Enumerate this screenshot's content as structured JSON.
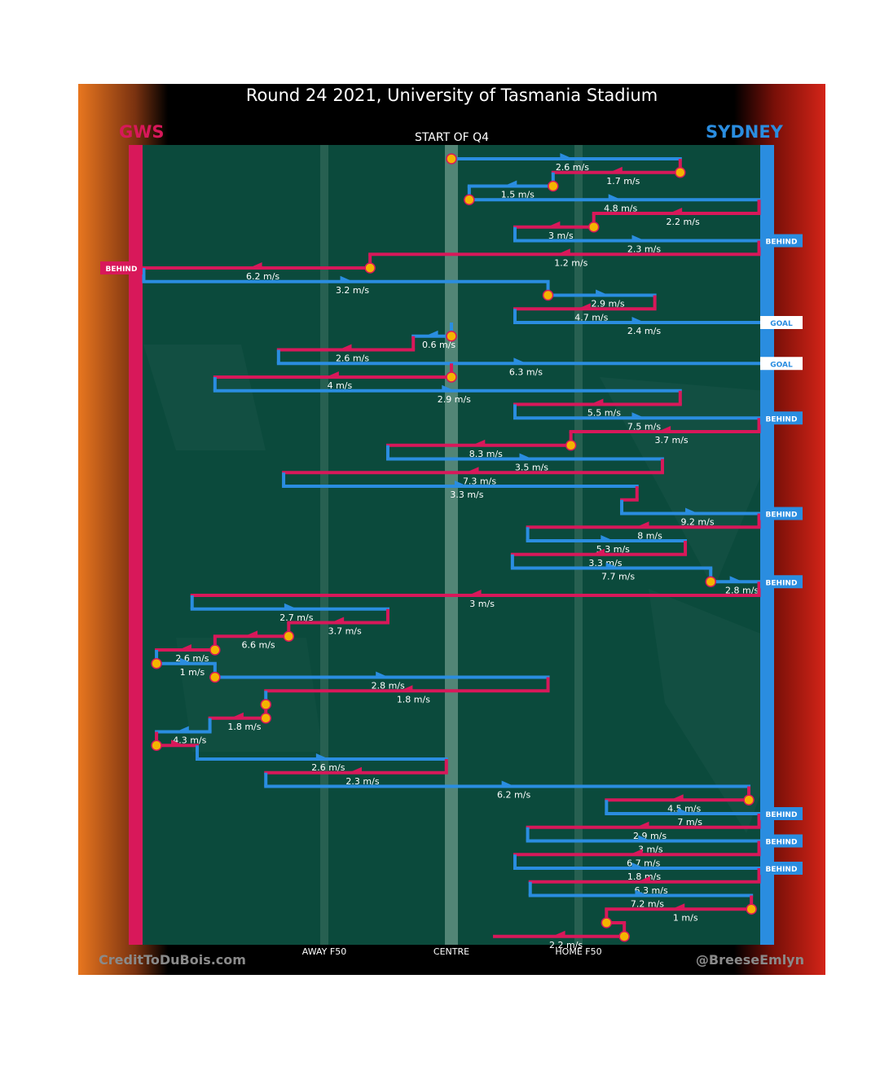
{
  "header": {
    "title": "Round 24 2021, University of Tasmania Stadium",
    "subtitle": "START OF Q4",
    "left_team": "GWS",
    "right_team": "SYDNEY"
  },
  "footer": {
    "credit_left": "CreditToDuBois.com",
    "credit_right": "@BreeseEmlyn"
  },
  "colors": {
    "gws": "#d8185a",
    "sydney": "#2a8de0",
    "field": "#0b4a3c",
    "stoppage": "#f4b400"
  },
  "chart_data": {
    "type": "line",
    "x_axis_labels": [
      "AWAY F50",
      "CENTRE",
      "HOME F50"
    ],
    "xlim": [
      -80,
      80
    ],
    "x_ticks": [
      -50,
      0,
      50
    ],
    "legend": [
      "GWS",
      "SYDNEY"
    ],
    "grid": false,
    "chains": [
      {
        "team": "SYDNEY",
        "from": 0,
        "to": 90,
        "speed": "2.6 m/s",
        "start_stoppage": true
      },
      {
        "team": "GWS",
        "from": 90,
        "to": 40,
        "speed": "1.7 m/s",
        "start_stoppage": true
      },
      {
        "team": "SYDNEY",
        "from": 40,
        "to": 7,
        "speed": "1.5 m/s",
        "start_stoppage": true
      },
      {
        "team": "SYDNEY",
        "from": 7,
        "to": 121,
        "speed": "4.8 m/s",
        "start_stoppage": true
      },
      {
        "team": "GWS",
        "from": 121,
        "to": 56,
        "speed": "2.2 m/s"
      },
      {
        "team": "GWS",
        "from": 56,
        "to": 25,
        "speed": "3 m/s",
        "start_stoppage": true
      },
      {
        "team": "SYDNEY",
        "from": 25,
        "to": 128,
        "speed": "2.3 m/s",
        "result": "BEHIND"
      },
      {
        "team": "GWS",
        "from": 121,
        "to": -32,
        "speed": "1.2 m/s"
      },
      {
        "team": "GWS",
        "from": -32,
        "to": -128,
        "speed": "6.2 m/s",
        "start_stoppage": true,
        "result": "BEHIND"
      },
      {
        "team": "SYDNEY",
        "from": -121,
        "to": 38,
        "speed": "3.2 m/s"
      },
      {
        "team": "SYDNEY",
        "from": 38,
        "to": 80,
        "speed": "2.9 m/s",
        "start_stoppage": true
      },
      {
        "team": "GWS",
        "from": 80,
        "to": 25,
        "speed": "4.7 m/s"
      },
      {
        "team": "SYDNEY",
        "from": 25,
        "to": 128,
        "speed": "2.4 m/s",
        "result": "GOAL"
      },
      {
        "team": "SYDNEY",
        "from": 0,
        "to": -15,
        "speed": "0.6 m/s",
        "start_stoppage": true
      },
      {
        "team": "GWS",
        "from": -15,
        "to": -68,
        "speed": "2.6 m/s"
      },
      {
        "team": "SYDNEY",
        "from": -68,
        "to": 128,
        "speed": "6.3 m/s",
        "result": "GOAL"
      },
      {
        "team": "GWS",
        "from": 0,
        "to": -93,
        "speed": "4 m/s",
        "start_stoppage": true
      },
      {
        "team": "SYDNEY",
        "from": -93,
        "to": 90,
        "speed": "2.9 m/s"
      },
      {
        "team": "GWS",
        "from": 90,
        "to": 25,
        "speed": "5.5 m/s"
      },
      {
        "team": "SYDNEY",
        "from": 25,
        "to": 128,
        "speed": "7.5 m/s",
        "result": "BEHIND"
      },
      {
        "team": "GWS",
        "from": 121,
        "to": 47,
        "speed": "3.7 m/s"
      },
      {
        "team": "GWS",
        "from": 47,
        "to": -25,
        "speed": "8.3 m/s",
        "start_stoppage": true
      },
      {
        "team": "SYDNEY",
        "from": -25,
        "to": 83,
        "speed": "3.5 m/s"
      },
      {
        "team": "GWS",
        "from": 83,
        "to": -66,
        "speed": "7.3 m/s"
      },
      {
        "team": "SYDNEY",
        "from": -66,
        "to": 73,
        "speed": "3.3 m/s"
      },
      {
        "team": "GWS",
        "from": 73,
        "to": 67,
        "speed": ""
      },
      {
        "team": "SYDNEY",
        "from": 67,
        "to": 128,
        "speed": "9.2 m/s",
        "result": "BEHIND"
      },
      {
        "team": "GWS",
        "from": 121,
        "to": 30,
        "speed": "8 m/s"
      },
      {
        "team": "SYDNEY",
        "from": 30,
        "to": 92,
        "speed": "5.3 m/s"
      },
      {
        "team": "GWS",
        "from": 92,
        "to": 24,
        "speed": "3.3 m/s"
      },
      {
        "team": "SYDNEY",
        "from": 24,
        "to": 102,
        "speed": "7.7 m/s"
      },
      {
        "team": "SYDNEY",
        "from": 102,
        "to": 128,
        "speed": "2.8 m/s",
        "start_stoppage": true,
        "result": "BEHIND"
      },
      {
        "team": "GWS",
        "from": 121,
        "to": -102,
        "speed": "3 m/s"
      },
      {
        "team": "SYDNEY",
        "from": -102,
        "to": -25,
        "speed": "2.7 m/s"
      },
      {
        "team": "GWS",
        "from": -25,
        "to": -64,
        "speed": "3.7 m/s"
      },
      {
        "team": "GWS",
        "from": -64,
        "to": -93,
        "speed": "6.6 m/s",
        "start_stoppage": true
      },
      {
        "team": "GWS",
        "from": -93,
        "to": -116,
        "speed": "2.6 m/s",
        "start_stoppage": true
      },
      {
        "team": "SYDNEY",
        "from": -116,
        "to": -93,
        "speed": "1 m/s",
        "start_stoppage": true
      },
      {
        "team": "SYDNEY",
        "from": -93,
        "to": 38,
        "speed": "2.8 m/s",
        "start_stoppage": true
      },
      {
        "team": "GWS",
        "from": 38,
        "to": -73,
        "speed": "1.8 m/s"
      },
      {
        "team": "SYDNEY",
        "from": -73,
        "to": -73,
        "speed": "",
        "start_stoppage": true
      },
      {
        "team": "GWS",
        "from": -73,
        "to": -95,
        "speed": "1.8 m/s",
        "start_stoppage": true
      },
      {
        "team": "SYDNEY",
        "from": -95,
        "to": -116,
        "speed": "4.3 m/s"
      },
      {
        "team": "GWS",
        "from": -116,
        "to": -100,
        "speed": "",
        "start_stoppage": true
      },
      {
        "team": "SYDNEY",
        "from": -100,
        "to": -2,
        "speed": "2.6 m/s"
      },
      {
        "team": "GWS",
        "from": -2,
        "to": -73,
        "speed": "2.3 m/s"
      },
      {
        "team": "SYDNEY",
        "from": -73,
        "to": 117,
        "speed": "6.2 m/s"
      },
      {
        "team": "GWS",
        "from": 117,
        "to": 61,
        "speed": "4.5 m/s",
        "start_stoppage": true
      },
      {
        "team": "SYDNEY",
        "from": 61,
        "to": 128,
        "speed": "7 m/s",
        "result": "BEHIND"
      },
      {
        "team": "GWS",
        "from": 121,
        "to": 30,
        "speed": "2.9 m/s"
      },
      {
        "team": "SYDNEY",
        "from": 30,
        "to": 128,
        "speed": "3 m/s",
        "result": "BEHIND"
      },
      {
        "team": "GWS",
        "from": 121,
        "to": 25,
        "speed": "6.7 m/s"
      },
      {
        "team": "SYDNEY",
        "from": 25,
        "to": 128,
        "speed": "1.8 m/s",
        "result": "BEHIND"
      },
      {
        "team": "GWS",
        "from": 121,
        "to": 31,
        "speed": "6.3 m/s"
      },
      {
        "team": "SYDNEY",
        "from": 31,
        "to": 118,
        "speed": "7.2 m/s"
      },
      {
        "team": "GWS",
        "from": 118,
        "to": 61,
        "speed": "1 m/s",
        "start_stoppage": true
      },
      {
        "team": "GWS",
        "from": 61,
        "to": 68,
        "speed": "",
        "start_stoppage": true
      },
      {
        "team": "GWS",
        "from": 68,
        "to": 17,
        "speed": "2.2 m/s",
        "start_stoppage": true
      }
    ]
  }
}
